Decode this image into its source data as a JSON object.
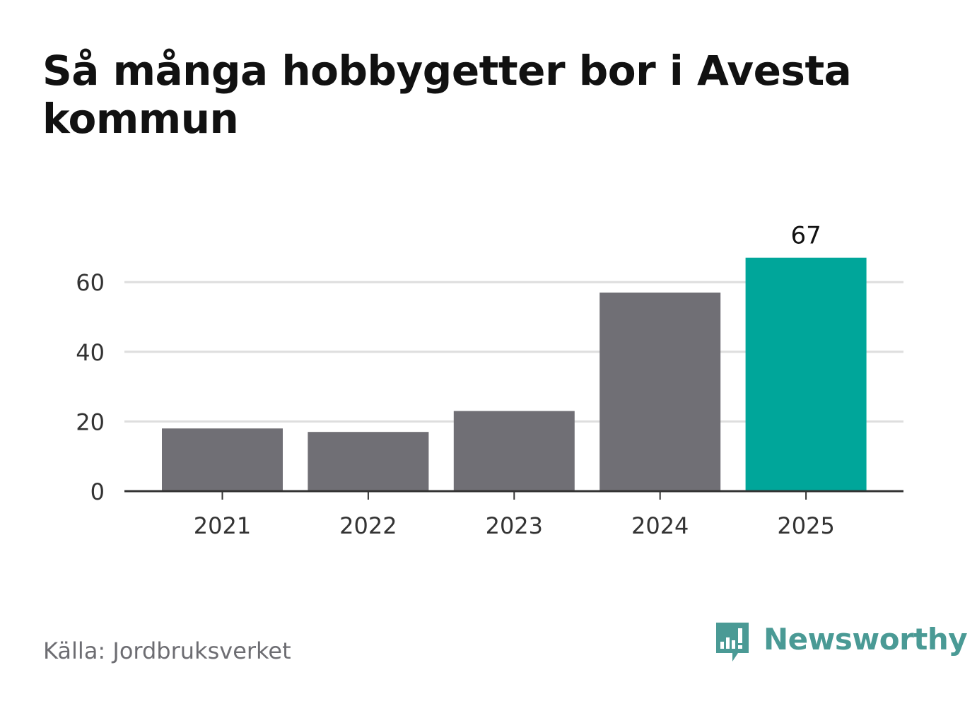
{
  "chart_data": {
    "type": "bar",
    "title": "Så många hobbygetter bor i Avesta kommun",
    "categories": [
      "2021",
      "2022",
      "2023",
      "2024",
      "2025"
    ],
    "values": [
      18,
      17,
      23,
      57,
      67
    ],
    "value_labels": [
      "",
      "",
      "",
      "",
      "67"
    ],
    "ylim": [
      0,
      70
    ],
    "yticks": [
      "0",
      "20",
      "40",
      "60"
    ],
    "xlabel": "",
    "ylabel": "",
    "grid": true,
    "legend": "none",
    "colors": {
      "bar": "#706f75",
      "highlight": "#00a69a",
      "grid": "#dedede",
      "axis": "#333333"
    },
    "highlight_index": 4
  },
  "footer": {
    "source": "Källa: Jordbruksverket",
    "brand": "Newsworthy",
    "brand_icon": "newsworthy-logo-icon"
  }
}
